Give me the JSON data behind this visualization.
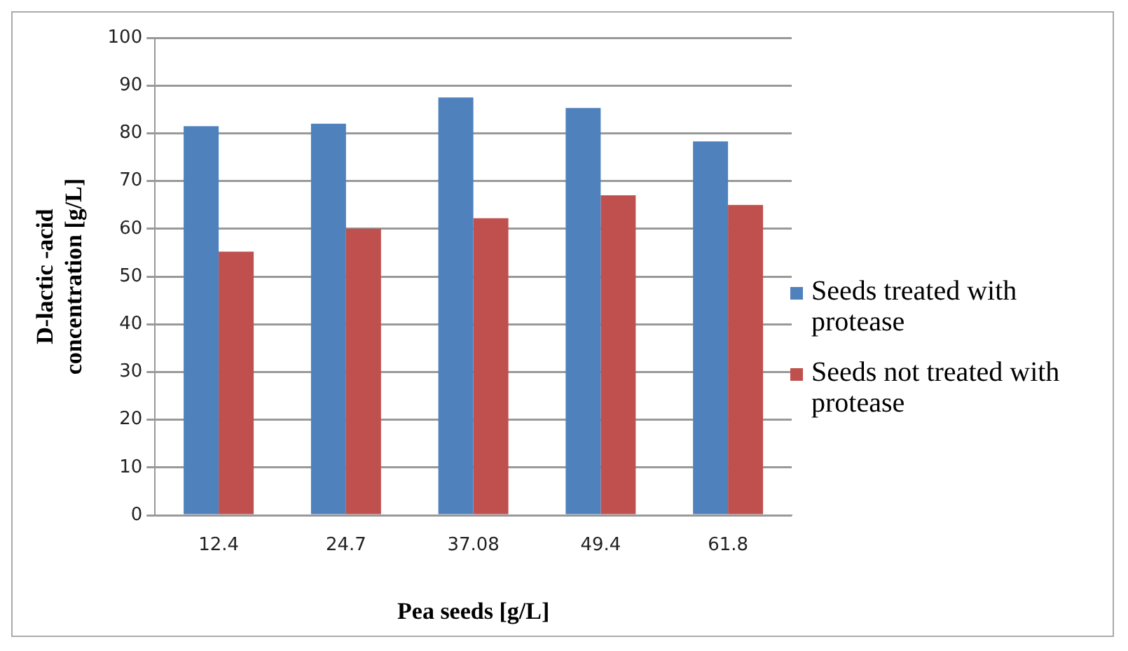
{
  "chart_data": {
    "type": "bar",
    "xlabel": "Pea seeds [g/L]",
    "ylabel": "D-lactic -acid concentration [g/L]",
    "categories": [
      "12.4",
      "24.7",
      "37.08",
      "49.4",
      "61.8"
    ],
    "series": [
      {
        "name": "Seeds treated with protease",
        "color": "#4f81bd",
        "values": [
          81.5,
          82,
          87.5,
          85.3,
          78.3
        ]
      },
      {
        "name": "Seeds not treated with protease",
        "color": "#c0504d",
        "values": [
          55.2,
          60,
          62.2,
          67,
          65
        ]
      }
    ],
    "ylim": [
      0,
      100
    ],
    "yticks": [
      0,
      10,
      20,
      30,
      40,
      50,
      60,
      70,
      80,
      90,
      100
    ],
    "grid": "y",
    "legend": "right"
  }
}
